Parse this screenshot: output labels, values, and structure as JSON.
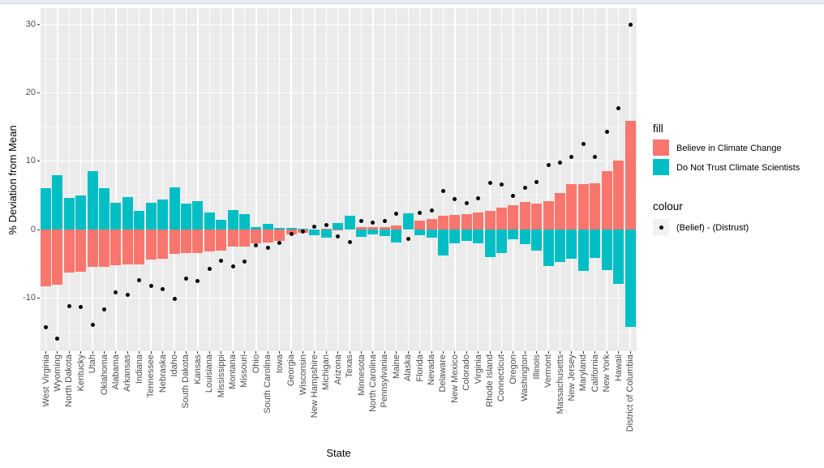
{
  "chart_data": {
    "type": "bar",
    "title": "",
    "xlabel": "State",
    "ylabel": "% Deviation from Mean",
    "ylim": [
      -17.8,
      32.4
    ],
    "yticks": [
      -10,
      0,
      10,
      20,
      30
    ],
    "yticks_minor": [
      -15,
      -5,
      5,
      15,
      25
    ],
    "grid": true,
    "legend_position": "right",
    "panel_color": "#ebebeb",
    "legend": {
      "fill_title": "fill",
      "colour_title": "colour",
      "key_bg": "#f2f2f2"
    },
    "categories": [
      "West Virginia",
      "Wyoming",
      "North Dakota",
      "Kentucky",
      "Utah",
      "Oklahoma",
      "Alabama",
      "Arkansas",
      "Indiana",
      "Tennessee",
      "Nebraska",
      "Idaho",
      "South Dakota",
      "Kansas",
      "Louisiana",
      "Mississippi",
      "Montana",
      "Missouri",
      "Ohio",
      "South Carolina",
      "Iowa",
      "Georgia",
      "Wisconsin",
      "New Hampshire",
      "Michigan",
      "Arizona",
      "Texas",
      "Minnesota",
      "North Carolina",
      "Pennsylvania",
      "Maine",
      "Alaska",
      "Florida",
      "Nevada",
      "Delaware",
      "New Mexico",
      "Colorado",
      "Virginia",
      "Rhode Island",
      "Connecticut",
      "Oregon",
      "Washington",
      "Illinois",
      "Vermont",
      "Massachusetts",
      "New Jersey",
      "Maryland",
      "California",
      "New York",
      "Hawaii",
      "District of Columbia"
    ],
    "series": [
      {
        "name": "Believe in Climate Change",
        "type": "bar",
        "color": "#F8766D",
        "values": [
          -8.3,
          -8.1,
          -6.3,
          -6.2,
          -5.5,
          -5.5,
          -5.2,
          -5.1,
          -5.1,
          -4.4,
          -4.3,
          -3.6,
          -3.4,
          -3.4,
          -3.2,
          -3.1,
          -2.5,
          -2.5,
          -2.0,
          -1.85,
          -1.7,
          -0.7,
          -0.45,
          0.05,
          0.1,
          -0.05,
          0.1,
          0.35,
          0.3,
          0.3,
          0.65,
          0.95,
          1.25,
          1.5,
          2.0,
          2.1,
          2.25,
          2.45,
          2.7,
          3.2,
          3.55,
          4.05,
          3.85,
          4.2,
          5.4,
          6.6,
          6.65,
          6.8,
          8.5,
          10.1,
          15.9
        ]
      },
      {
        "name": "Do Not Trust Climate Scientists",
        "type": "bar",
        "color": "#00BFC4",
        "values": [
          6.0,
          7.9,
          4.6,
          5.0,
          8.5,
          6.1,
          3.9,
          4.8,
          2.7,
          3.9,
          4.4,
          6.2,
          3.8,
          4.1,
          2.5,
          1.4,
          2.8,
          2.2,
          0.35,
          0.85,
          0.25,
          0.25,
          0.15,
          -0.85,
          -1.15,
          0.95,
          2.05,
          -1.05,
          -0.7,
          -0.9,
          -1.9,
          2.4,
          -0.85,
          -1.15,
          -3.8,
          -2.05,
          -1.65,
          -2.05,
          -4.05,
          -3.45,
          -1.45,
          -2.15,
          -3.05,
          -5.35,
          -4.75,
          -4.25,
          -6.05,
          -4.15,
          -5.95,
          -8.0,
          -14.3
        ]
      },
      {
        "name": "(Belief) - (Distrust)",
        "type": "point",
        "color": "#000000",
        "values": [
          -14.3,
          -16.0,
          -11.2,
          -11.3,
          -14.0,
          -11.7,
          -9.2,
          -9.6,
          -7.4,
          -8.3,
          -8.7,
          -10.1,
          -7.2,
          -7.5,
          -5.8,
          -4.6,
          -5.4,
          -4.7,
          -2.3,
          -2.7,
          -2.0,
          -0.7,
          -0.25,
          0.4,
          0.7,
          -1.0,
          -1.9,
          1.3,
          1.0,
          1.2,
          2.3,
          -1.4,
          2.4,
          2.8,
          5.7,
          4.5,
          3.9,
          4.6,
          6.8,
          6.6,
          4.9,
          6.1,
          7.0,
          9.4,
          9.8,
          10.6,
          12.5,
          10.6,
          14.3,
          17.8,
          30.0
        ]
      }
    ]
  }
}
